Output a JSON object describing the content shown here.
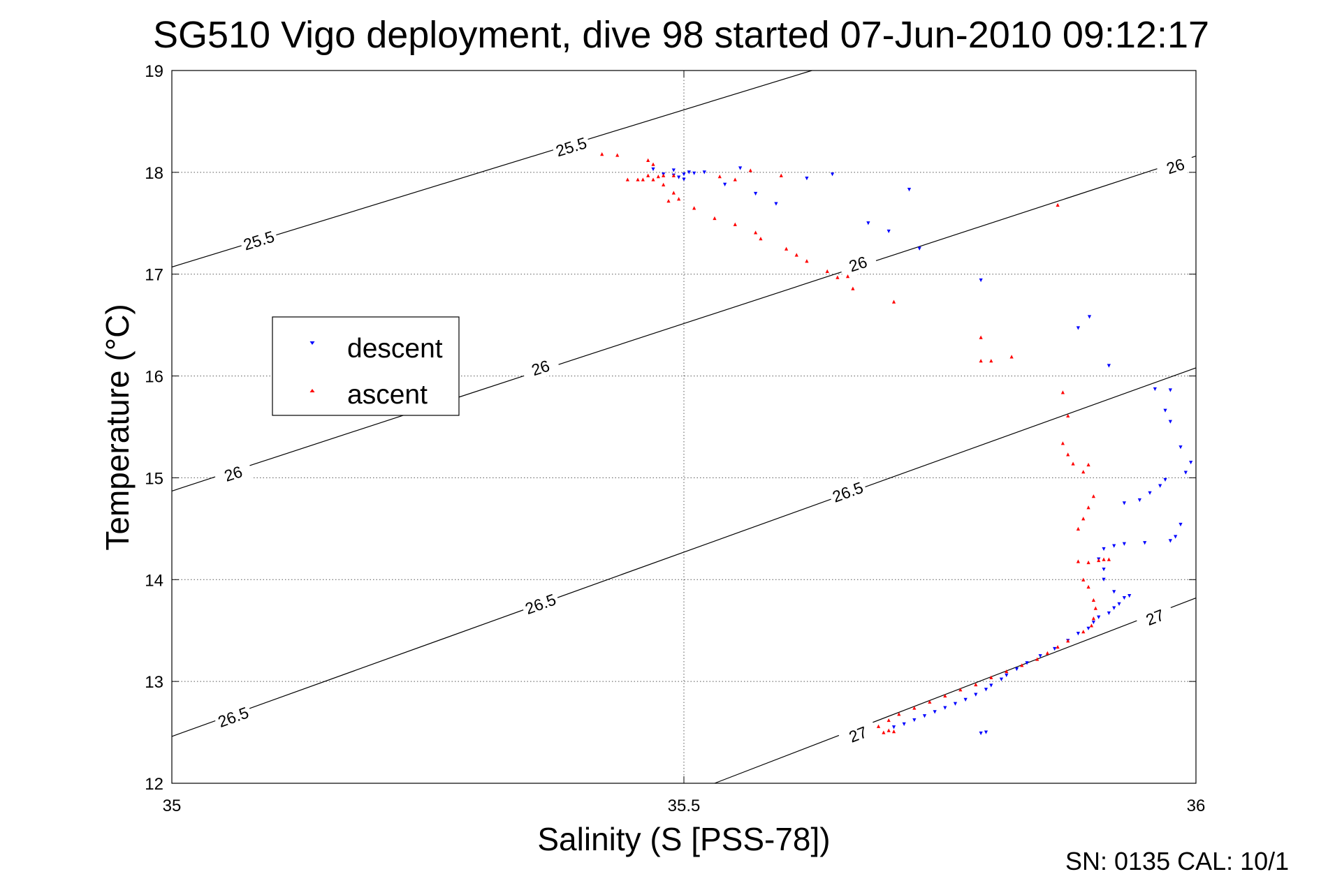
{
  "chart_data": {
    "type": "scatter",
    "title": "SG510 Vigo deployment, dive 98 started 07-Jun-2010 09:12:17",
    "xlabel": "Salinity (S [PSS-78])",
    "ylabel": "Temperature (°C)",
    "xlim": [
      35,
      36
    ],
    "ylim": [
      12,
      19
    ],
    "xticks": [
      35,
      35.5,
      36
    ],
    "yticks": [
      12,
      13,
      14,
      15,
      16,
      17,
      18,
      19
    ],
    "xtick_labels": [
      "35",
      "35.5",
      "36"
    ],
    "ytick_labels": [
      "12",
      "13",
      "14",
      "15",
      "16",
      "17",
      "18",
      "19"
    ],
    "grid": true,
    "legend_position": "left",
    "footer": "SN: 0135  CAL: 10/1",
    "isopycnals": [
      {
        "label": "25.5",
        "points": [
          [
            35.0,
            17.07
          ],
          [
            35.625,
            19.0
          ]
        ],
        "label_positions": [
          [
            35.085,
            17.33
          ],
          [
            35.39,
            18.25
          ]
        ]
      },
      {
        "label": "26",
        "points": [
          [
            35.0,
            14.87
          ],
          [
            36.0,
            18.16
          ]
        ],
        "label_positions": [
          [
            35.06,
            15.04
          ],
          [
            35.36,
            16.08
          ],
          [
            35.67,
            17.1
          ],
          [
            35.98,
            18.06
          ]
        ]
      },
      {
        "label": "26.5",
        "points": [
          [
            35.0,
            12.46
          ],
          [
            36.0,
            16.08
          ]
        ],
        "label_positions": [
          [
            35.06,
            12.65
          ],
          [
            35.36,
            13.76
          ],
          [
            35.66,
            14.86
          ]
        ]
      },
      {
        "label": "27",
        "points": [
          [
            35.53,
            12.0
          ],
          [
            36.0,
            13.82
          ]
        ],
        "label_positions": [
          [
            35.67,
            12.48
          ],
          [
            35.96,
            13.63
          ]
        ]
      }
    ],
    "series": [
      {
        "name": "descent",
        "color": "#0000ff",
        "marker": "triangle-down",
        "points": [
          [
            35.47,
            18.03
          ],
          [
            35.48,
            17.98
          ],
          [
            35.49,
            17.97
          ],
          [
            35.495,
            17.95
          ],
          [
            35.5,
            17.98
          ],
          [
            35.505,
            18.0
          ],
          [
            35.5,
            17.93
          ],
          [
            35.49,
            18.02
          ],
          [
            35.51,
            17.99
          ],
          [
            35.52,
            18.0
          ],
          [
            35.54,
            17.88
          ],
          [
            35.555,
            18.04
          ],
          [
            35.57,
            17.79
          ],
          [
            35.59,
            17.69
          ],
          [
            35.62,
            17.94
          ],
          [
            35.645,
            17.98
          ],
          [
            35.68,
            17.5
          ],
          [
            35.7,
            17.42
          ],
          [
            35.72,
            17.83
          ],
          [
            35.73,
            17.25
          ],
          [
            35.79,
            16.94
          ],
          [
            35.885,
            16.47
          ],
          [
            35.896,
            16.58
          ],
          [
            35.915,
            16.1
          ],
          [
            35.96,
            15.87
          ],
          [
            35.975,
            15.86
          ],
          [
            35.97,
            15.66
          ],
          [
            35.975,
            15.55
          ],
          [
            35.985,
            15.3
          ],
          [
            35.995,
            15.15
          ],
          [
            35.99,
            15.05
          ],
          [
            35.97,
            14.98
          ],
          [
            35.965,
            14.92
          ],
          [
            35.955,
            14.85
          ],
          [
            35.945,
            14.78
          ],
          [
            35.93,
            14.75
          ],
          [
            35.985,
            14.54
          ],
          [
            35.98,
            14.42
          ],
          [
            35.975,
            14.38
          ],
          [
            35.95,
            14.36
          ],
          [
            35.93,
            14.35
          ],
          [
            35.92,
            14.33
          ],
          [
            35.91,
            14.3
          ],
          [
            35.905,
            14.2
          ],
          [
            35.91,
            14.1
          ],
          [
            35.91,
            14.0
          ],
          [
            35.92,
            13.88
          ],
          [
            35.935,
            13.84
          ],
          [
            35.93,
            13.82
          ],
          [
            35.925,
            13.76
          ],
          [
            35.92,
            13.72
          ],
          [
            35.915,
            13.67
          ],
          [
            35.905,
            13.63
          ],
          [
            35.9,
            13.58
          ],
          [
            35.895,
            13.52
          ],
          [
            35.885,
            13.47
          ],
          [
            35.875,
            13.4
          ],
          [
            35.862,
            13.32
          ],
          [
            35.848,
            13.25
          ],
          [
            35.835,
            13.18
          ],
          [
            35.825,
            13.12
          ],
          [
            35.815,
            13.06
          ],
          [
            35.81,
            13.02
          ],
          [
            35.8,
            12.96
          ],
          [
            35.795,
            12.92
          ],
          [
            35.785,
            12.87
          ],
          [
            35.775,
            12.82
          ],
          [
            35.765,
            12.78
          ],
          [
            35.755,
            12.74
          ],
          [
            35.745,
            12.7
          ],
          [
            35.735,
            12.66
          ],
          [
            35.725,
            12.62
          ],
          [
            35.715,
            12.58
          ],
          [
            35.705,
            12.55
          ],
          [
            35.795,
            12.5
          ],
          [
            35.79,
            12.49
          ]
        ]
      },
      {
        "name": "ascent",
        "color": "#ff0000",
        "marker": "triangle-up",
        "points": [
          [
            35.42,
            18.18
          ],
          [
            35.435,
            18.17
          ],
          [
            35.445,
            17.93
          ],
          [
            35.455,
            17.93
          ],
          [
            35.46,
            17.93
          ],
          [
            35.465,
            17.97
          ],
          [
            35.47,
            17.93
          ],
          [
            35.475,
            17.96
          ],
          [
            35.48,
            17.97
          ],
          [
            35.49,
            17.97
          ],
          [
            35.465,
            18.12
          ],
          [
            35.47,
            18.08
          ],
          [
            35.48,
            17.88
          ],
          [
            35.49,
            17.8
          ],
          [
            35.495,
            17.74
          ],
          [
            35.485,
            17.72
          ],
          [
            35.51,
            17.65
          ],
          [
            35.53,
            17.55
          ],
          [
            35.535,
            17.96
          ],
          [
            35.55,
            17.93
          ],
          [
            35.55,
            17.49
          ],
          [
            35.565,
            18.02
          ],
          [
            35.57,
            17.41
          ],
          [
            35.575,
            17.35
          ],
          [
            35.595,
            17.97
          ],
          [
            35.6,
            17.25
          ],
          [
            35.61,
            17.19
          ],
          [
            35.62,
            17.13
          ],
          [
            35.64,
            17.03
          ],
          [
            35.65,
            16.97
          ],
          [
            35.66,
            16.98
          ],
          [
            35.665,
            16.86
          ],
          [
            35.705,
            16.73
          ],
          [
            35.79,
            16.38
          ],
          [
            35.79,
            16.15
          ],
          [
            35.8,
            16.15
          ],
          [
            35.82,
            16.19
          ],
          [
            35.865,
            17.68
          ],
          [
            35.87,
            15.84
          ],
          [
            35.875,
            15.61
          ],
          [
            35.87,
            15.34
          ],
          [
            35.875,
            15.23
          ],
          [
            35.88,
            15.14
          ],
          [
            35.89,
            15.06
          ],
          [
            35.895,
            15.13
          ],
          [
            35.9,
            14.82
          ],
          [
            35.895,
            14.71
          ],
          [
            35.89,
            14.6
          ],
          [
            35.885,
            14.5
          ],
          [
            35.885,
            14.18
          ],
          [
            35.895,
            14.17
          ],
          [
            35.905,
            14.19
          ],
          [
            35.91,
            14.2
          ],
          [
            35.915,
            14.2
          ],
          [
            35.89,
            14.0
          ],
          [
            35.895,
            13.93
          ],
          [
            35.9,
            13.8
          ],
          [
            35.902,
            13.72
          ],
          [
            35.9,
            13.62
          ],
          [
            35.898,
            13.55
          ],
          [
            35.89,
            13.49
          ],
          [
            35.875,
            13.4
          ],
          [
            35.865,
            13.34
          ],
          [
            35.855,
            13.28
          ],
          [
            35.845,
            13.22
          ],
          [
            35.83,
            13.16
          ],
          [
            35.815,
            13.1
          ],
          [
            35.8,
            13.04
          ],
          [
            35.785,
            12.97
          ],
          [
            35.77,
            12.92
          ],
          [
            35.755,
            12.86
          ],
          [
            35.74,
            12.8
          ],
          [
            35.725,
            12.74
          ],
          [
            35.71,
            12.68
          ],
          [
            35.7,
            12.62
          ],
          [
            35.69,
            12.56
          ],
          [
            35.7,
            12.52
          ],
          [
            35.695,
            12.5
          ],
          [
            35.705,
            12.51
          ]
        ]
      }
    ]
  }
}
